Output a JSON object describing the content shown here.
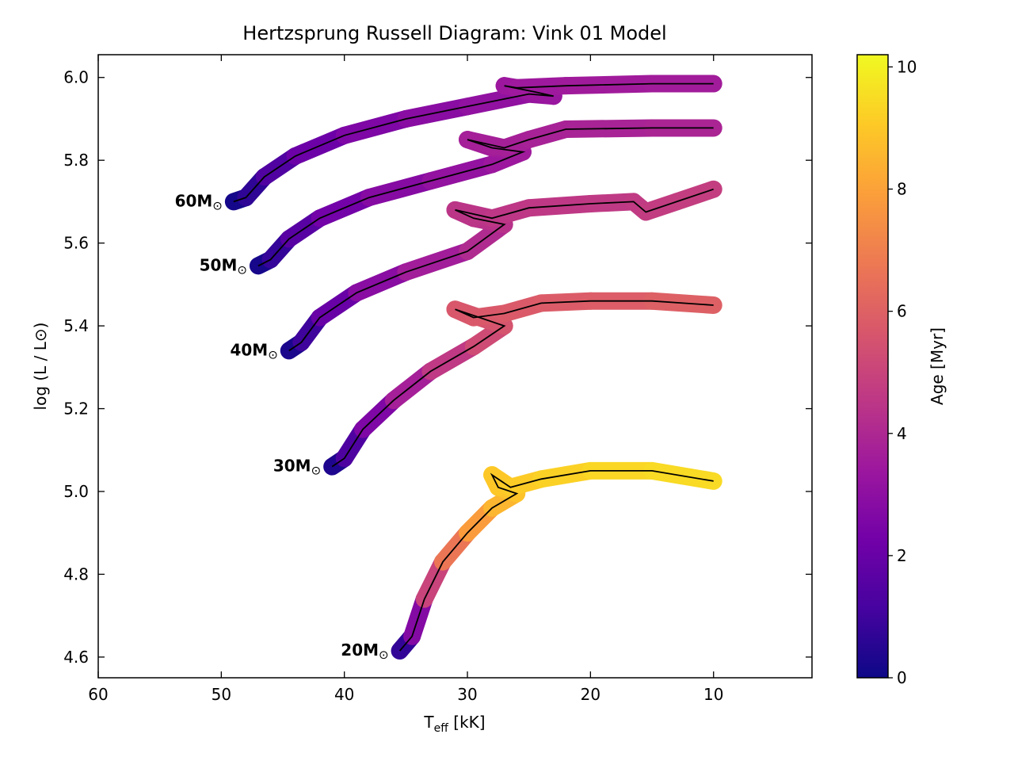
{
  "chart_data": {
    "type": "line",
    "title": "Hertzsprung Russell Diagram: Vink 01 Model",
    "xlabel": {
      "main": "T",
      "sub": "eff",
      "unit": " [kK]"
    },
    "ylabel": "log (L / L⊙)",
    "xlim": [
      60,
      2
    ],
    "ylim": [
      4.55,
      6.055
    ],
    "xticks": [
      60,
      50,
      40,
      30,
      20,
      10
    ],
    "yticks": [
      4.6,
      4.8,
      5.0,
      5.2,
      5.4,
      5.6,
      5.8,
      6.0
    ],
    "xtick_labels": [
      "60",
      "50",
      "40",
      "30",
      "20",
      "10"
    ],
    "ytick_labels": [
      "4.6",
      "4.8",
      "5.0",
      "5.2",
      "5.4",
      "5.6",
      "5.8",
      "6.0"
    ],
    "grid": false,
    "colorbar": {
      "label": "Age [Myr]",
      "range": [
        0,
        10.2
      ],
      "ticks": [
        0,
        2,
        4,
        6,
        8,
        10
      ],
      "tick_labels": [
        "0",
        "2",
        "4",
        "6",
        "8",
        "10"
      ],
      "colormap": "plasma",
      "stops": [
        "#0d0887",
        "#46039f",
        "#7201a8",
        "#9c179e",
        "#bd3786",
        "#d8576b",
        "#ed7953",
        "#fb9f3a",
        "#fdca26",
        "#f0f921"
      ]
    },
    "series": [
      {
        "name": "60M⊙",
        "label_main": "60M",
        "label_sym": "⊙",
        "points": [
          {
            "x": 49.0,
            "y": 5.7,
            "age": 0.0
          },
          {
            "x": 48.0,
            "y": 5.71,
            "age": 0.3
          },
          {
            "x": 46.5,
            "y": 5.76,
            "age": 1.0
          },
          {
            "x": 44.0,
            "y": 5.81,
            "age": 1.8
          },
          {
            "x": 40.0,
            "y": 5.86,
            "age": 2.4
          },
          {
            "x": 35.0,
            "y": 5.9,
            "age": 2.8
          },
          {
            "x": 30.0,
            "y": 5.93,
            "age": 3.0
          },
          {
            "x": 25.0,
            "y": 5.96,
            "age": 3.2
          },
          {
            "x": 23.0,
            "y": 5.955,
            "age": 3.3
          },
          {
            "x": 24.5,
            "y": 5.965,
            "age": 3.35
          },
          {
            "x": 27.0,
            "y": 5.98,
            "age": 3.4
          },
          {
            "x": 26.0,
            "y": 5.975,
            "age": 3.42
          },
          {
            "x": 22.0,
            "y": 5.98,
            "age": 3.5
          },
          {
            "x": 15.0,
            "y": 5.985,
            "age": 3.55
          },
          {
            "x": 10.0,
            "y": 5.985,
            "age": 3.6
          }
        ]
      },
      {
        "name": "50M⊙",
        "label_main": "50M",
        "label_sym": "⊙",
        "points": [
          {
            "x": 47.0,
            "y": 5.545,
            "age": 0.0
          },
          {
            "x": 46.0,
            "y": 5.56,
            "age": 0.4
          },
          {
            "x": 44.5,
            "y": 5.61,
            "age": 1.2
          },
          {
            "x": 42.0,
            "y": 5.66,
            "age": 2.0
          },
          {
            "x": 38.0,
            "y": 5.71,
            "age": 2.6
          },
          {
            "x": 33.0,
            "y": 5.75,
            "age": 3.0
          },
          {
            "x": 28.0,
            "y": 5.79,
            "age": 3.3
          },
          {
            "x": 25.5,
            "y": 5.82,
            "age": 3.5
          },
          {
            "x": 28.0,
            "y": 5.83,
            "age": 3.6
          },
          {
            "x": 30.0,
            "y": 5.85,
            "age": 3.65
          },
          {
            "x": 27.0,
            "y": 5.83,
            "age": 3.7
          },
          {
            "x": 25.0,
            "y": 5.85,
            "age": 3.75
          },
          {
            "x": 22.0,
            "y": 5.875,
            "age": 3.8
          },
          {
            "x": 15.0,
            "y": 5.878,
            "age": 3.85
          },
          {
            "x": 10.0,
            "y": 5.878,
            "age": 3.9
          }
        ]
      },
      {
        "name": "40M⊙",
        "label_main": "40M",
        "label_sym": "⊙",
        "points": [
          {
            "x": 44.5,
            "y": 5.34,
            "age": 0.0
          },
          {
            "x": 43.5,
            "y": 5.36,
            "age": 0.5
          },
          {
            "x": 42.0,
            "y": 5.42,
            "age": 1.5
          },
          {
            "x": 39.0,
            "y": 5.48,
            "age": 2.5
          },
          {
            "x": 35.0,
            "y": 5.53,
            "age": 3.3
          },
          {
            "x": 30.0,
            "y": 5.58,
            "age": 3.9
          },
          {
            "x": 27.0,
            "y": 5.645,
            "age": 4.3
          },
          {
            "x": 29.5,
            "y": 5.66,
            "age": 4.4
          },
          {
            "x": 31.0,
            "y": 5.68,
            "age": 4.45
          },
          {
            "x": 28.0,
            "y": 5.66,
            "age": 4.5
          },
          {
            "x": 25.0,
            "y": 5.685,
            "age": 4.55
          },
          {
            "x": 20.0,
            "y": 5.695,
            "age": 4.6
          },
          {
            "x": 16.5,
            "y": 5.7,
            "age": 4.65
          },
          {
            "x": 15.5,
            "y": 5.675,
            "age": 4.7
          },
          {
            "x": 13.0,
            "y": 5.7,
            "age": 4.75
          },
          {
            "x": 10.0,
            "y": 5.73,
            "age": 4.8
          }
        ]
      },
      {
        "name": "30M⊙",
        "label_main": "30M",
        "label_sym": "⊙",
        "points": [
          {
            "x": 41.0,
            "y": 5.06,
            "age": 0.0
          },
          {
            "x": 40.0,
            "y": 5.08,
            "age": 0.7
          },
          {
            "x": 38.5,
            "y": 5.15,
            "age": 2.0
          },
          {
            "x": 36.0,
            "y": 5.22,
            "age": 3.2
          },
          {
            "x": 33.0,
            "y": 5.29,
            "age": 4.2
          },
          {
            "x": 29.5,
            "y": 5.35,
            "age": 5.0
          },
          {
            "x": 27.0,
            "y": 5.4,
            "age": 5.5
          },
          {
            "x": 29.0,
            "y": 5.42,
            "age": 5.6
          },
          {
            "x": 31.0,
            "y": 5.44,
            "age": 5.65
          },
          {
            "x": 29.5,
            "y": 5.42,
            "age": 5.7
          },
          {
            "x": 27.0,
            "y": 5.43,
            "age": 5.75
          },
          {
            "x": 24.0,
            "y": 5.455,
            "age": 5.8
          },
          {
            "x": 20.0,
            "y": 5.46,
            "age": 5.85
          },
          {
            "x": 15.0,
            "y": 5.46,
            "age": 5.9
          },
          {
            "x": 10.0,
            "y": 5.45,
            "age": 6.0
          }
        ]
      },
      {
        "name": "20M⊙",
        "label_main": "20M",
        "label_sym": "⊙",
        "points": [
          {
            "x": 35.5,
            "y": 4.615,
            "age": 0.0
          },
          {
            "x": 34.5,
            "y": 4.65,
            "age": 1.5
          },
          {
            "x": 33.5,
            "y": 4.74,
            "age": 4.0
          },
          {
            "x": 32.0,
            "y": 4.83,
            "age": 6.0
          },
          {
            "x": 30.0,
            "y": 4.9,
            "age": 7.4
          },
          {
            "x": 28.0,
            "y": 4.96,
            "age": 8.3
          },
          {
            "x": 26.0,
            "y": 4.995,
            "age": 8.8
          },
          {
            "x": 27.5,
            "y": 5.01,
            "age": 8.95
          },
          {
            "x": 28.0,
            "y": 5.04,
            "age": 9.0
          },
          {
            "x": 26.5,
            "y": 5.01,
            "age": 9.05
          },
          {
            "x": 24.0,
            "y": 5.03,
            "age": 9.15
          },
          {
            "x": 20.0,
            "y": 5.05,
            "age": 9.3
          },
          {
            "x": 15.0,
            "y": 5.05,
            "age": 9.4
          },
          {
            "x": 10.0,
            "y": 5.025,
            "age": 9.5
          }
        ]
      }
    ]
  }
}
